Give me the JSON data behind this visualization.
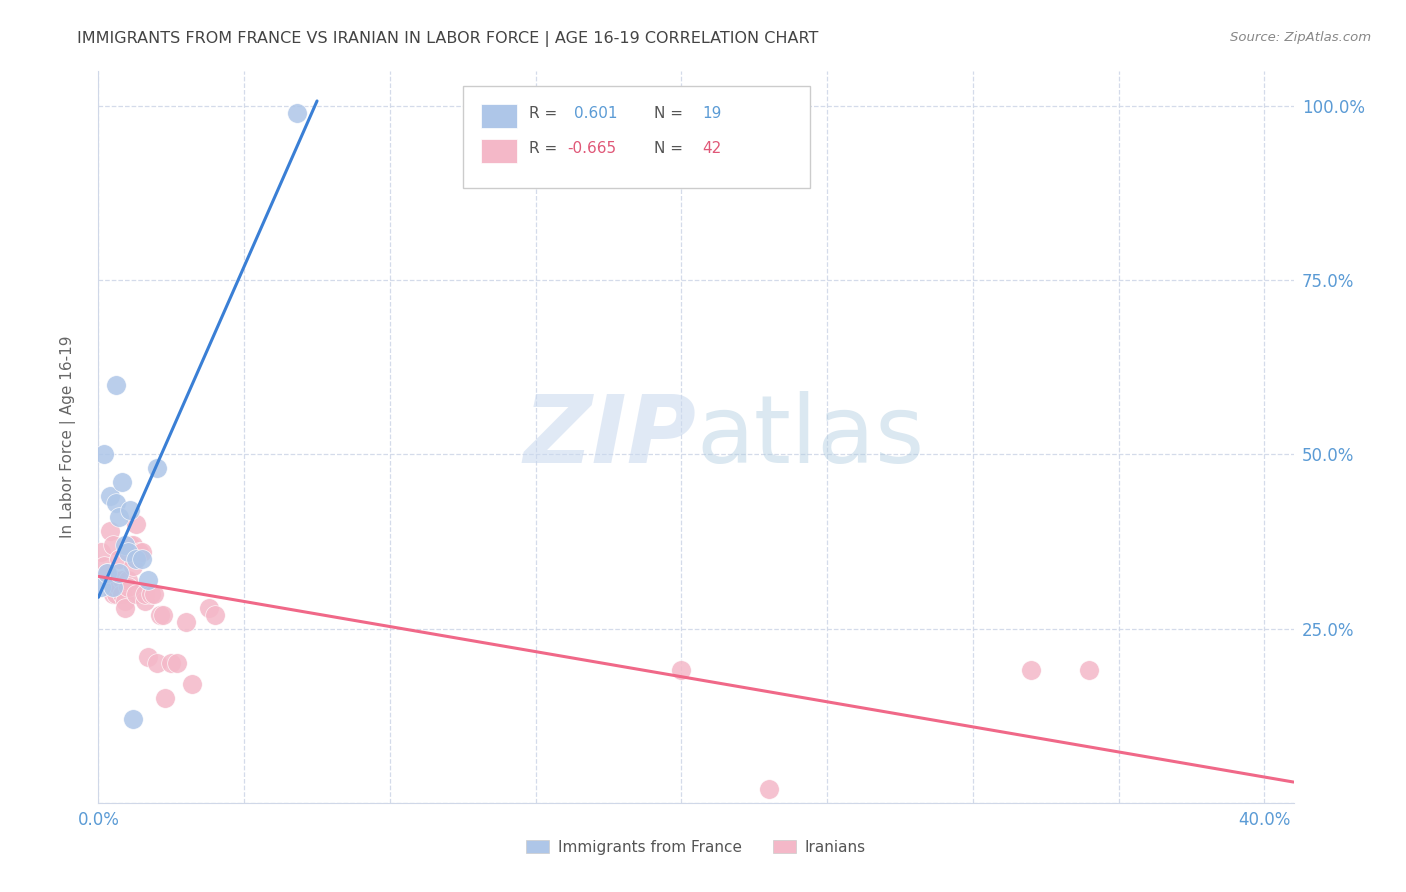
{
  "title": "IMMIGRANTS FROM FRANCE VS IRANIAN IN LABOR FORCE | AGE 16-19 CORRELATION CHART",
  "source": "Source: ZipAtlas.com",
  "ylabel": "In Labor Force | Age 16-19",
  "france_R": "0.601",
  "france_N": "19",
  "iran_R": "-0.665",
  "iran_N": "42",
  "france_color": "#aec6e8",
  "iran_color": "#f4b8c8",
  "france_line_color": "#3a7fd5",
  "iran_line_color": "#f06888",
  "grid_color": "#d0d8e8",
  "title_color": "#444444",
  "right_axis_color": "#5b9bd5",
  "france_scatter_x": [
    0.001,
    0.002,
    0.003,
    0.004,
    0.005,
    0.006,
    0.006,
    0.007,
    0.007,
    0.008,
    0.009,
    0.01,
    0.011,
    0.012,
    0.013,
    0.015,
    0.017,
    0.02,
    0.068
  ],
  "france_scatter_y": [
    0.31,
    0.5,
    0.33,
    0.44,
    0.31,
    0.6,
    0.43,
    0.41,
    0.33,
    0.46,
    0.37,
    0.36,
    0.42,
    0.12,
    0.35,
    0.35,
    0.32,
    0.48,
    0.99
  ],
  "iran_scatter_x": [
    0.001,
    0.002,
    0.003,
    0.004,
    0.005,
    0.005,
    0.006,
    0.006,
    0.007,
    0.007,
    0.008,
    0.008,
    0.009,
    0.009,
    0.01,
    0.01,
    0.011,
    0.012,
    0.012,
    0.013,
    0.013,
    0.014,
    0.015,
    0.016,
    0.016,
    0.017,
    0.018,
    0.019,
    0.02,
    0.021,
    0.022,
    0.023,
    0.025,
    0.027,
    0.03,
    0.032,
    0.038,
    0.04,
    0.2,
    0.23,
    0.32,
    0.34
  ],
  "iran_scatter_y": [
    0.36,
    0.34,
    0.33,
    0.39,
    0.3,
    0.37,
    0.32,
    0.3,
    0.35,
    0.31,
    0.32,
    0.3,
    0.29,
    0.28,
    0.32,
    0.31,
    0.37,
    0.34,
    0.37,
    0.4,
    0.3,
    0.36,
    0.36,
    0.29,
    0.3,
    0.21,
    0.3,
    0.3,
    0.2,
    0.27,
    0.27,
    0.15,
    0.2,
    0.2,
    0.26,
    0.17,
    0.28,
    0.27,
    0.19,
    0.02,
    0.19,
    0.19
  ],
  "xlim": [
    0.0,
    0.41
  ],
  "ylim": [
    0.0,
    1.05
  ],
  "xtick_positions": [
    0.0,
    0.05,
    0.1,
    0.15,
    0.2,
    0.25,
    0.3,
    0.35,
    0.4
  ],
  "ytick_positions": [
    0.0,
    0.25,
    0.5,
    0.75,
    1.0
  ],
  "right_yticklabels": [
    "",
    "25.0%",
    "50.0%",
    "75.0%",
    "100.0%"
  ],
  "france_line_x": [
    0.0,
    0.075
  ],
  "iran_line_x": [
    0.0,
    0.41
  ],
  "france_line_intercept": 0.295,
  "france_line_slope": 9.5,
  "iran_line_intercept": 0.325,
  "iran_line_slope": -0.72
}
